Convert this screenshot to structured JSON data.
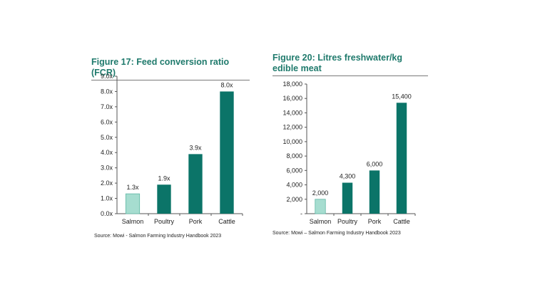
{
  "charts": [
    {
      "figure_title": "Figure 17: Feed conversion ratio (FCR)",
      "source": "Source: Mowi - Salmon Farming Industry Handbook 2023"
    },
    {
      "figure_title": "Figure 20: Litres freshwater/kg edible meat",
      "source": "Source: Mowi – Salmon Farming Industry Handbook 2023"
    }
  ],
  "colors": {
    "dark_teal": "#0b7468",
    "light_teal": "#a6ddd0",
    "title": "#1f7a6c"
  },
  "chart_data": [
    {
      "type": "bar",
      "title": "Figure 17: Feed conversion ratio (FCR)",
      "categories": [
        "Salmon",
        "Poultry",
        "Pork",
        "Cattle"
      ],
      "values": [
        1.3,
        1.9,
        3.9,
        8.0
      ],
      "data_labels": [
        "1.3x",
        "1.9x",
        "3.9x",
        "8.0x"
      ],
      "ylim": [
        0,
        9
      ],
      "yticks": [
        "0.0x",
        "1.0x",
        "2.0x",
        "3.0x",
        "4.0x",
        "5.0x",
        "6.0x",
        "7.0x",
        "8.0x",
        "9.0x"
      ],
      "grid": false,
      "highlight_category": "Salmon",
      "source": "Source: Mowi - Salmon Farming Industry Handbook 2023"
    },
    {
      "type": "bar",
      "title": "Figure 20: Litres freshwater/kg edible meat",
      "categories": [
        "Salmon",
        "Poultry",
        "Pork",
        "Cattle"
      ],
      "values": [
        2000,
        4300,
        6000,
        15400
      ],
      "data_labels": [
        "2,000",
        "4,300",
        "6,000",
        "15,400"
      ],
      "ylim": [
        0,
        18000
      ],
      "yticks": [
        "-",
        "2,000",
        "4,000",
        "6,000",
        "8,000",
        "10,000",
        "12,000",
        "14,000",
        "16,000",
        "18,000"
      ],
      "grid": false,
      "highlight_category": "Salmon",
      "source": "Source: Mowi – Salmon Farming Industry Handbook 2023"
    }
  ]
}
